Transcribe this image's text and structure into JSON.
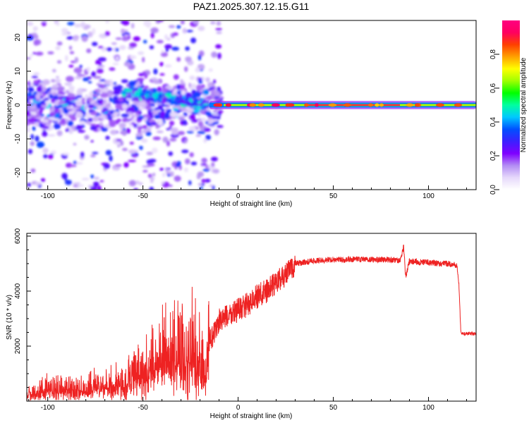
{
  "title": "PAZ1.2025.307.12.15.G11",
  "chart_data": [
    {
      "type": "heatmap",
      "name": "spectrogram",
      "xlabel": "Height of straight line (km)",
      "ylabel": "Frequency (Hz)",
      "xlim": [
        -111,
        125
      ],
      "ylim": [
        -25,
        25
      ],
      "xticks": [
        -100,
        -50,
        0,
        50,
        100
      ],
      "yticks": [
        -20,
        -10,
        0,
        10,
        20
      ],
      "tick_labels_x": [
        "-100",
        "-50",
        "0",
        "50",
        "100"
      ],
      "tick_labels_y": [
        "-20",
        "-10",
        "0",
        "10",
        "20"
      ],
      "colorbar": {
        "label": "Normalized spectral amplitude",
        "range": [
          0,
          1
        ],
        "ticks": [
          0.0,
          0.2,
          0.4,
          0.6,
          0.8
        ],
        "tick_labels": [
          "0.0",
          "0.2",
          "0.4",
          "0.6",
          "0.8"
        ],
        "colors": [
          "#ffffff",
          "#e6d9fb",
          "#b38cf4",
          "#7f00ff",
          "#3b20ff",
          "#0050ff",
          "#00c8ff",
          "#00ffa0",
          "#00ff00",
          "#a0ff00",
          "#ffff00",
          "#ffa000",
          "#ff4000",
          "#ff0060",
          "#ff0080"
        ]
      },
      "features": {
        "stable_line_start_km": -15,
        "stable_line_frequency_hz": 0,
        "noise_region_km": [
          -111,
          -15
        ],
        "noise_frequency_spread_hz": 25
      }
    },
    {
      "type": "line",
      "name": "snr",
      "xlabel": "Height of straight line (km)",
      "ylabel": "SNR (10 * v/v)",
      "xlim": [
        -111,
        125
      ],
      "ylim": [
        0,
        6100
      ],
      "xticks": [
        -100,
        -50,
        0,
        50,
        100
      ],
      "yticks": [
        2000,
        4000,
        6000
      ],
      "tick_labels_x": [
        "-100",
        "-50",
        "0",
        "50",
        "100"
      ],
      "tick_labels_y": [
        "2000",
        "4000",
        "6000"
      ],
      "color": "#ee2222",
      "series": [
        {
          "name": "SNR",
          "x": [
            -111,
            -100,
            -90,
            -80,
            -70,
            -60,
            -55,
            -50,
            -45,
            -40,
            -35,
            -30,
            -25,
            -20,
            -18,
            -17,
            -15,
            -12,
            -10,
            -5,
            0,
            5,
            10,
            15,
            20,
            25,
            28,
            30,
            35,
            40,
            50,
            60,
            70,
            80,
            85,
            87,
            88,
            90,
            95,
            100,
            105,
            110,
            114,
            115,
            116,
            117,
            118,
            120,
            125
          ],
          "y": [
            200,
            350,
            400,
            350,
            450,
            500,
            700,
            900,
            1100,
            1200,
            1300,
            1350,
            1400,
            1200,
            800,
            600,
            2300,
            2600,
            3000,
            3200,
            3400,
            3600,
            3900,
            4100,
            4400,
            4700,
            4900,
            5000,
            5050,
            5100,
            5150,
            5150,
            5150,
            5150,
            5100,
            5600,
            4500,
            5100,
            5050,
            5050,
            5000,
            5000,
            4950,
            4900,
            4200,
            2500,
            2450,
            2450,
            2450
          ]
        }
      ]
    }
  ]
}
